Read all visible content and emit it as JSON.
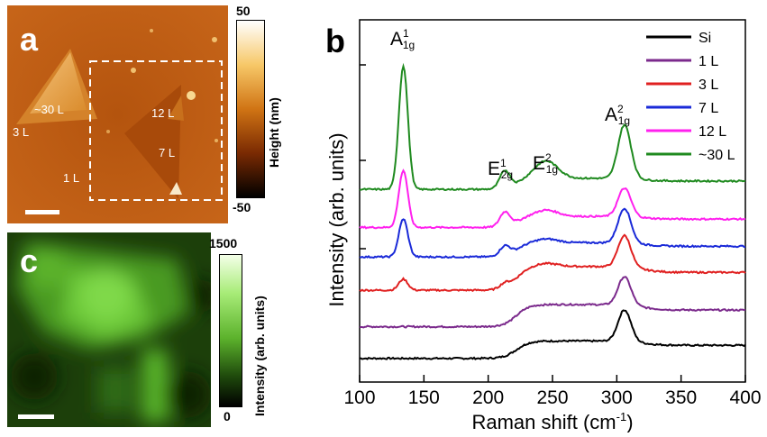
{
  "colors": {
    "afm_dark": "#5a1d02",
    "afm_mid": "#b85a0f",
    "afm_light": "#f2a33a",
    "pl_dark": "#0d2405",
    "pl_bright": "#7fd94a"
  },
  "panel_a": {
    "letter": "a",
    "labels": {
      "l30": "~30 L",
      "l3": "3 L",
      "l12": "12 L",
      "l7": "7 L",
      "l1": "1 L"
    },
    "colorbar": {
      "max": "50",
      "min": "-50",
      "title": "Height (nm)"
    }
  },
  "panel_c": {
    "letter": "c",
    "colorbar": {
      "max": "1500",
      "min": "0",
      "title": "Intensity (arb. units)"
    }
  },
  "panel_b": {
    "letter": "b",
    "peaks": {
      "a1g1": {
        "main": "A",
        "sup": "1",
        "sub": "1g"
      },
      "e2g1": {
        "main": "E",
        "sup": "1",
        "sub": "2g"
      },
      "e1g2": {
        "main": "E",
        "sup": "2",
        "sub": "1g"
      },
      "a1g2": {
        "main": "A",
        "sup": "2",
        "sub": "1g"
      }
    }
  },
  "chart_data": {
    "type": "line",
    "xlabel": "Raman shift (cm",
    "xlabel_sup": "-1",
    "xlabel_close": ")",
    "ylabel": "Intensity (arb. units)",
    "xlim": [
      100,
      400
    ],
    "xticks": [
      "100",
      "150",
      "200",
      "250",
      "300",
      "350",
      "400"
    ],
    "legend_position": "top-right",
    "series": [
      {
        "name": "Si",
        "color": "#000000",
        "offset": 0,
        "base": 0.12,
        "shoulder": 0.55,
        "a1": 0.0,
        "e12": 0.0,
        "e21": 0.0,
        "a2": 1.0
      },
      {
        "name": "1 L",
        "color": "#7b2a8c",
        "offset": 1.0,
        "base": 0.12,
        "shoulder": 0.7,
        "a1": 0.0,
        "e12": 0.0,
        "e21": 0.0,
        "a2": 0.9
      },
      {
        "name": "3 L",
        "color": "#e02020",
        "offset": 2.15,
        "base": 0.12,
        "shoulder": 0.75,
        "a1": 0.35,
        "e12": 0.15,
        "e21": 0.1,
        "a2": 1.0
      },
      {
        "name": "7 L",
        "color": "#1a2ad8",
        "offset": 3.2,
        "base": 0.12,
        "shoulder": 0.45,
        "a1": 1.2,
        "e12": 0.3,
        "e21": 0.12,
        "a2": 1.1
      },
      {
        "name": "12 L",
        "color": "#ff20ee",
        "offset": 4.15,
        "base": 0.1,
        "shoulder": 0.35,
        "a1": 1.8,
        "e12": 0.45,
        "e21": 0.2,
        "a2": 0.9
      },
      {
        "name": "~30 L",
        "color": "#1f8a1f",
        "offset": 5.35,
        "base": 0.1,
        "shoulder": 0.35,
        "a1": 3.9,
        "e12": 0.55,
        "e21": 0.55,
        "a2": 1.7
      }
    ]
  }
}
